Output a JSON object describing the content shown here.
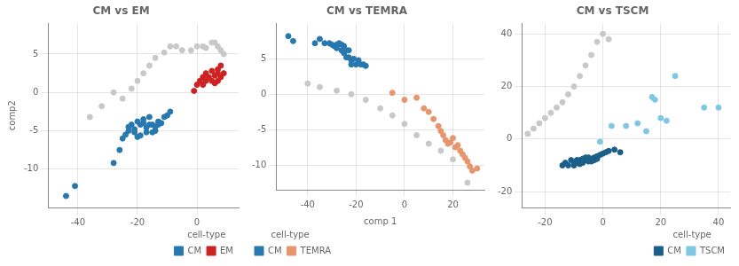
{
  "chart_data": [
    {
      "type": "scatter",
      "title": "CM vs EM",
      "ylabel": "comp2",
      "series": [
        {
          "color": "#C8C8C8",
          "x": [
            -36,
            -32,
            -28,
            -25,
            -22,
            -20,
            -18,
            -16,
            -14,
            -11,
            -9,
            -7,
            -5,
            -2,
            0,
            2,
            3,
            5,
            6,
            7,
            8,
            9
          ],
          "values": [
            -3.2,
            -1.8,
            0.0,
            -0.8,
            0.5,
            1.5,
            2.5,
            3.5,
            4.5,
            5.2,
            6.0,
            6.0,
            5.5,
            5.5,
            6.0,
            6.0,
            5.8,
            6.5,
            6.5,
            6.0,
            5.5,
            5.0
          ]
        },
        {
          "name": "CM",
          "color": "#2878B0",
          "x": [
            -44,
            -41,
            -28,
            -26,
            -25,
            -24,
            -23,
            -23,
            -22,
            -21,
            -21,
            -20,
            -20,
            -19,
            -19,
            -18,
            -18,
            -17,
            -17,
            -16,
            -16,
            -15,
            -15,
            -14,
            -14,
            -13,
            -13,
            -12,
            -11,
            -10,
            -9
          ],
          "values": [
            -13.5,
            -12.2,
            -9.2,
            -7.5,
            -6.0,
            -5.5,
            -5.0,
            -4.5,
            -4.2,
            -4.8,
            -5.2,
            -3.8,
            -5.8,
            -4.2,
            -5.6,
            -4.0,
            -3.5,
            -5.2,
            -4.6,
            -3.2,
            -4.2,
            -4.2,
            -5.2,
            -5.0,
            -4.5,
            -3.8,
            -4.2,
            -4.0,
            -3.2,
            -3.0,
            -2.5
          ]
        },
        {
          "name": "EM",
          "color": "#CC2222",
          "x": [
            -1,
            0,
            1,
            2,
            2,
            3,
            3,
            4,
            5,
            5,
            6,
            6,
            7,
            7,
            7,
            8,
            8,
            9
          ],
          "values": [
            0.2,
            1.0,
            1.5,
            1.0,
            2.0,
            1.5,
            2.5,
            2.0,
            1.5,
            2.8,
            1.2,
            2.2,
            1.5,
            2.5,
            3.0,
            2.0,
            3.5,
            2.5
          ]
        }
      ],
      "xlim": [
        -50,
        14
      ],
      "ylim": [
        -15,
        9
      ],
      "xticks": [
        -40,
        -20,
        0
      ],
      "yticks": [
        -10,
        -5,
        0,
        5
      ],
      "grid": true,
      "legend": "lower right",
      "legend_title": "cell-type"
    },
    {
      "type": "scatter",
      "title": "CM vs TEMRA",
      "xlabel": "comp 1",
      "series": [
        {
          "color": "#C8C8C8",
          "x": [
            -40,
            -35,
            -28,
            -22,
            -16,
            -10,
            -5,
            0,
            5,
            10,
            15,
            20,
            26
          ],
          "values": [
            1.5,
            1.0,
            0.5,
            0.0,
            -0.8,
            -2.0,
            -3.0,
            -4.2,
            -5.8,
            -7.0,
            -8.0,
            -9.2,
            -12.5
          ]
        },
        {
          "name": "CM",
          "color": "#2878B0",
          "x": [
            -48,
            -46,
            -37,
            -35,
            -33,
            -31,
            -30,
            -29,
            -28,
            -28,
            -27,
            -26,
            -26,
            -25,
            -25,
            -24,
            -24,
            -23,
            -23,
            -22,
            -22,
            -21,
            -20,
            -19,
            -18,
            -17,
            -16
          ],
          "values": [
            8.2,
            7.5,
            7.2,
            7.8,
            7.2,
            7.2,
            7.0,
            6.8,
            6.5,
            7.0,
            7.2,
            6.2,
            7.0,
            6.8,
            5.8,
            5.2,
            6.2,
            5.2,
            6.2,
            4.8,
            4.2,
            5.0,
            4.2,
            4.8,
            4.2,
            4.2,
            4.0
          ]
        },
        {
          "name": "TEMRA",
          "color": "#E8956D",
          "x": [
            -5,
            0,
            5,
            8,
            10,
            12,
            14,
            15,
            16,
            17,
            18,
            19,
            20,
            21,
            22,
            23,
            24,
            25,
            26,
            27,
            28,
            30
          ],
          "values": [
            0.2,
            -0.8,
            -0.5,
            -2.0,
            -2.5,
            -3.5,
            -4.5,
            -5.2,
            -5.8,
            -6.5,
            -7.0,
            -6.8,
            -6.2,
            -7.5,
            -7.2,
            -8.0,
            -8.5,
            -9.0,
            -9.5,
            -10.2,
            -10.8,
            -10.5
          ]
        }
      ],
      "xlim": [
        -53,
        33
      ],
      "ylim": [
        -13.5,
        10
      ],
      "xticks": [
        -40,
        -20,
        0,
        20
      ],
      "yticks": [
        -10,
        -5,
        0,
        5
      ],
      "grid": true,
      "legend": "lower left",
      "legend_title": "cell-type"
    },
    {
      "type": "scatter",
      "title": "CM vs TSCM",
      "series": [
        {
          "color": "#C8C8C8",
          "x": [
            -26,
            -24,
            -22,
            -20,
            -18,
            -16,
            -14,
            -12,
            -10,
            -8,
            -6,
            -4,
            -2,
            0,
            2
          ],
          "values": [
            2,
            4,
            6,
            8,
            10,
            12,
            14,
            17,
            20,
            24,
            28,
            32,
            37,
            40,
            38
          ]
        },
        {
          "name": "CM",
          "color": "#1B5E8A",
          "x": [
            -14,
            -13,
            -12,
            -11,
            -10,
            -10,
            -9,
            -9,
            -8,
            -8,
            -7,
            -7,
            -6,
            -6,
            -5,
            -5,
            -4,
            -4,
            -3,
            -3,
            -2,
            -2,
            -1,
            0,
            1,
            2,
            4,
            6
          ],
          "values": [
            -10,
            -9,
            -10,
            -8,
            -9,
            -10,
            -8,
            -9,
            -8,
            -9.5,
            -7.5,
            -9,
            -7,
            -8,
            -7,
            -8.5,
            -7.5,
            -8.5,
            -7,
            -8,
            -6.5,
            -7.5,
            -6,
            -5.5,
            -5,
            -4.5,
            -4,
            -5
          ]
        },
        {
          "name": "TSCM",
          "color": "#7EC8E3",
          "x": [
            -1,
            3,
            8,
            12,
            15,
            17,
            18,
            20,
            22,
            25,
            35,
            40
          ],
          "values": [
            -1,
            5,
            5,
            6,
            3,
            16,
            15,
            8,
            7,
            24,
            12,
            12
          ]
        }
      ],
      "xlim": [
        -28,
        44
      ],
      "ylim": [
        -26,
        44
      ],
      "xticks": [
        -20,
        0,
        20,
        40
      ],
      "yticks": [
        -20,
        0,
        20,
        40
      ],
      "grid": true,
      "legend": "lower right",
      "legend_title": "cell-type"
    }
  ]
}
